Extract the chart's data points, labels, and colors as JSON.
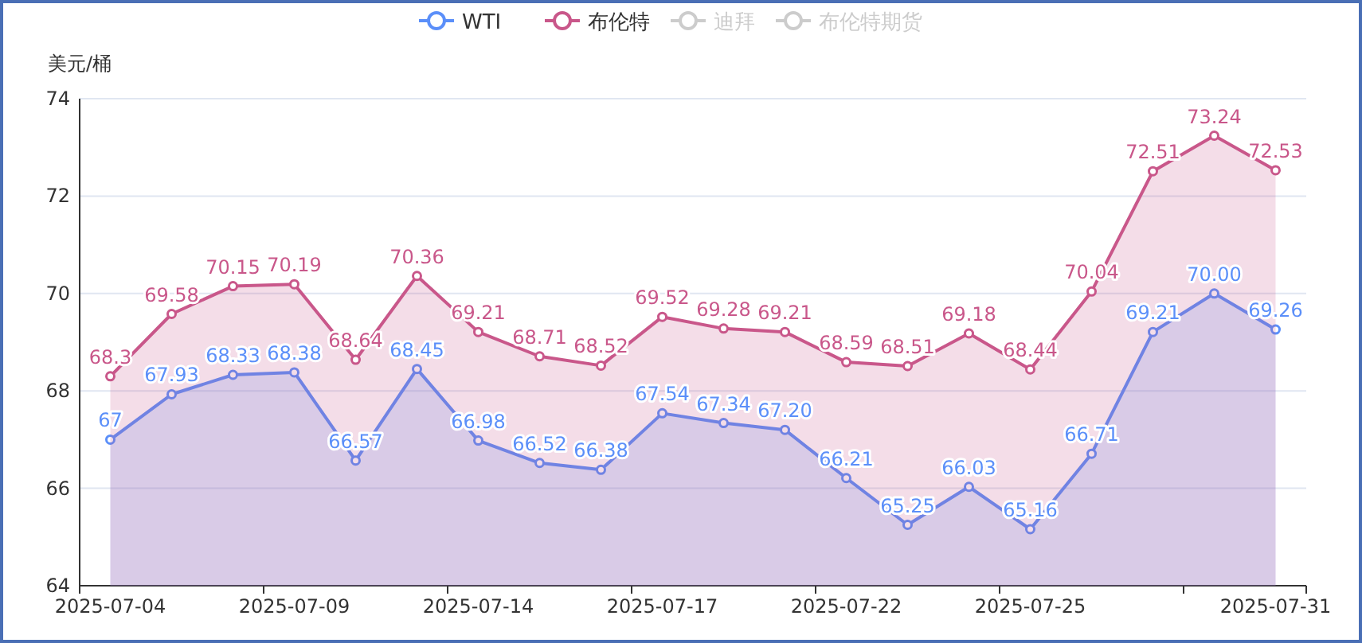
{
  "chart_data": {
    "type": "area",
    "ylabel": "美元/桶",
    "categories": [
      "2025-07-04",
      null,
      null,
      "2025-07-09",
      null,
      null,
      "2025-07-14",
      null,
      null,
      "2025-07-17",
      null,
      null,
      "2025-07-22",
      null,
      null,
      "2025-07-25",
      null,
      null,
      null,
      "2025-07-31"
    ],
    "series": [
      {
        "name": "WTI",
        "color": "#5b8ff9",
        "values": [
          67,
          67.93,
          68.33,
          68.38,
          66.57,
          68.45,
          66.98,
          66.52,
          66.38,
          67.54,
          67.34,
          67.2,
          66.21,
          65.25,
          66.03,
          65.16,
          66.71,
          69.21,
          70.0,
          69.26
        ],
        "value_labels": [
          "67",
          "67.93",
          "68.33",
          "68.38",
          "66.57",
          "68.45",
          "66.98",
          "66.52",
          "66.38",
          "67.54",
          "67.34",
          "67.20",
          "66.21",
          "65.25",
          "66.03",
          "65.16",
          "66.71",
          "69.21",
          "70.00",
          "69.26"
        ]
      },
      {
        "name": "布伦特",
        "color": "#c9578a",
        "values": [
          68.3,
          69.58,
          70.15,
          70.19,
          68.64,
          70.36,
          69.21,
          68.71,
          68.52,
          69.52,
          69.28,
          69.21,
          68.59,
          68.51,
          69.18,
          68.44,
          70.04,
          72.51,
          73.24,
          72.53
        ],
        "value_labels": [
          "68.3",
          "69.58",
          "70.15",
          "70.19",
          "68.64",
          "70.36",
          "69.21",
          "68.71",
          "68.52",
          "69.52",
          "69.28",
          "69.21",
          "68.59",
          "68.51",
          "69.18",
          "68.44",
          "70.04",
          "72.51",
          "73.24",
          "72.53"
        ]
      },
      {
        "name": "迪拜",
        "color": "#cccccc",
        "values": [
          null,
          null,
          null,
          null,
          null,
          null,
          null,
          null,
          null,
          null,
          null,
          null,
          null,
          null,
          null,
          null,
          null,
          null,
          null,
          null
        ]
      },
      {
        "name": "布伦特期货",
        "color": "#cccccc",
        "values": [
          null,
          null,
          null,
          null,
          null,
          null,
          null,
          null,
          null,
          null,
          null,
          null,
          null,
          null,
          null,
          null,
          null,
          null,
          null,
          null
        ]
      }
    ],
    "ylim": [
      64,
      74
    ],
    "yticks": [
      64,
      66,
      68,
      70,
      72,
      74
    ],
    "grid": "y",
    "legend": "top",
    "marker": "circle",
    "line_style": "solid"
  }
}
